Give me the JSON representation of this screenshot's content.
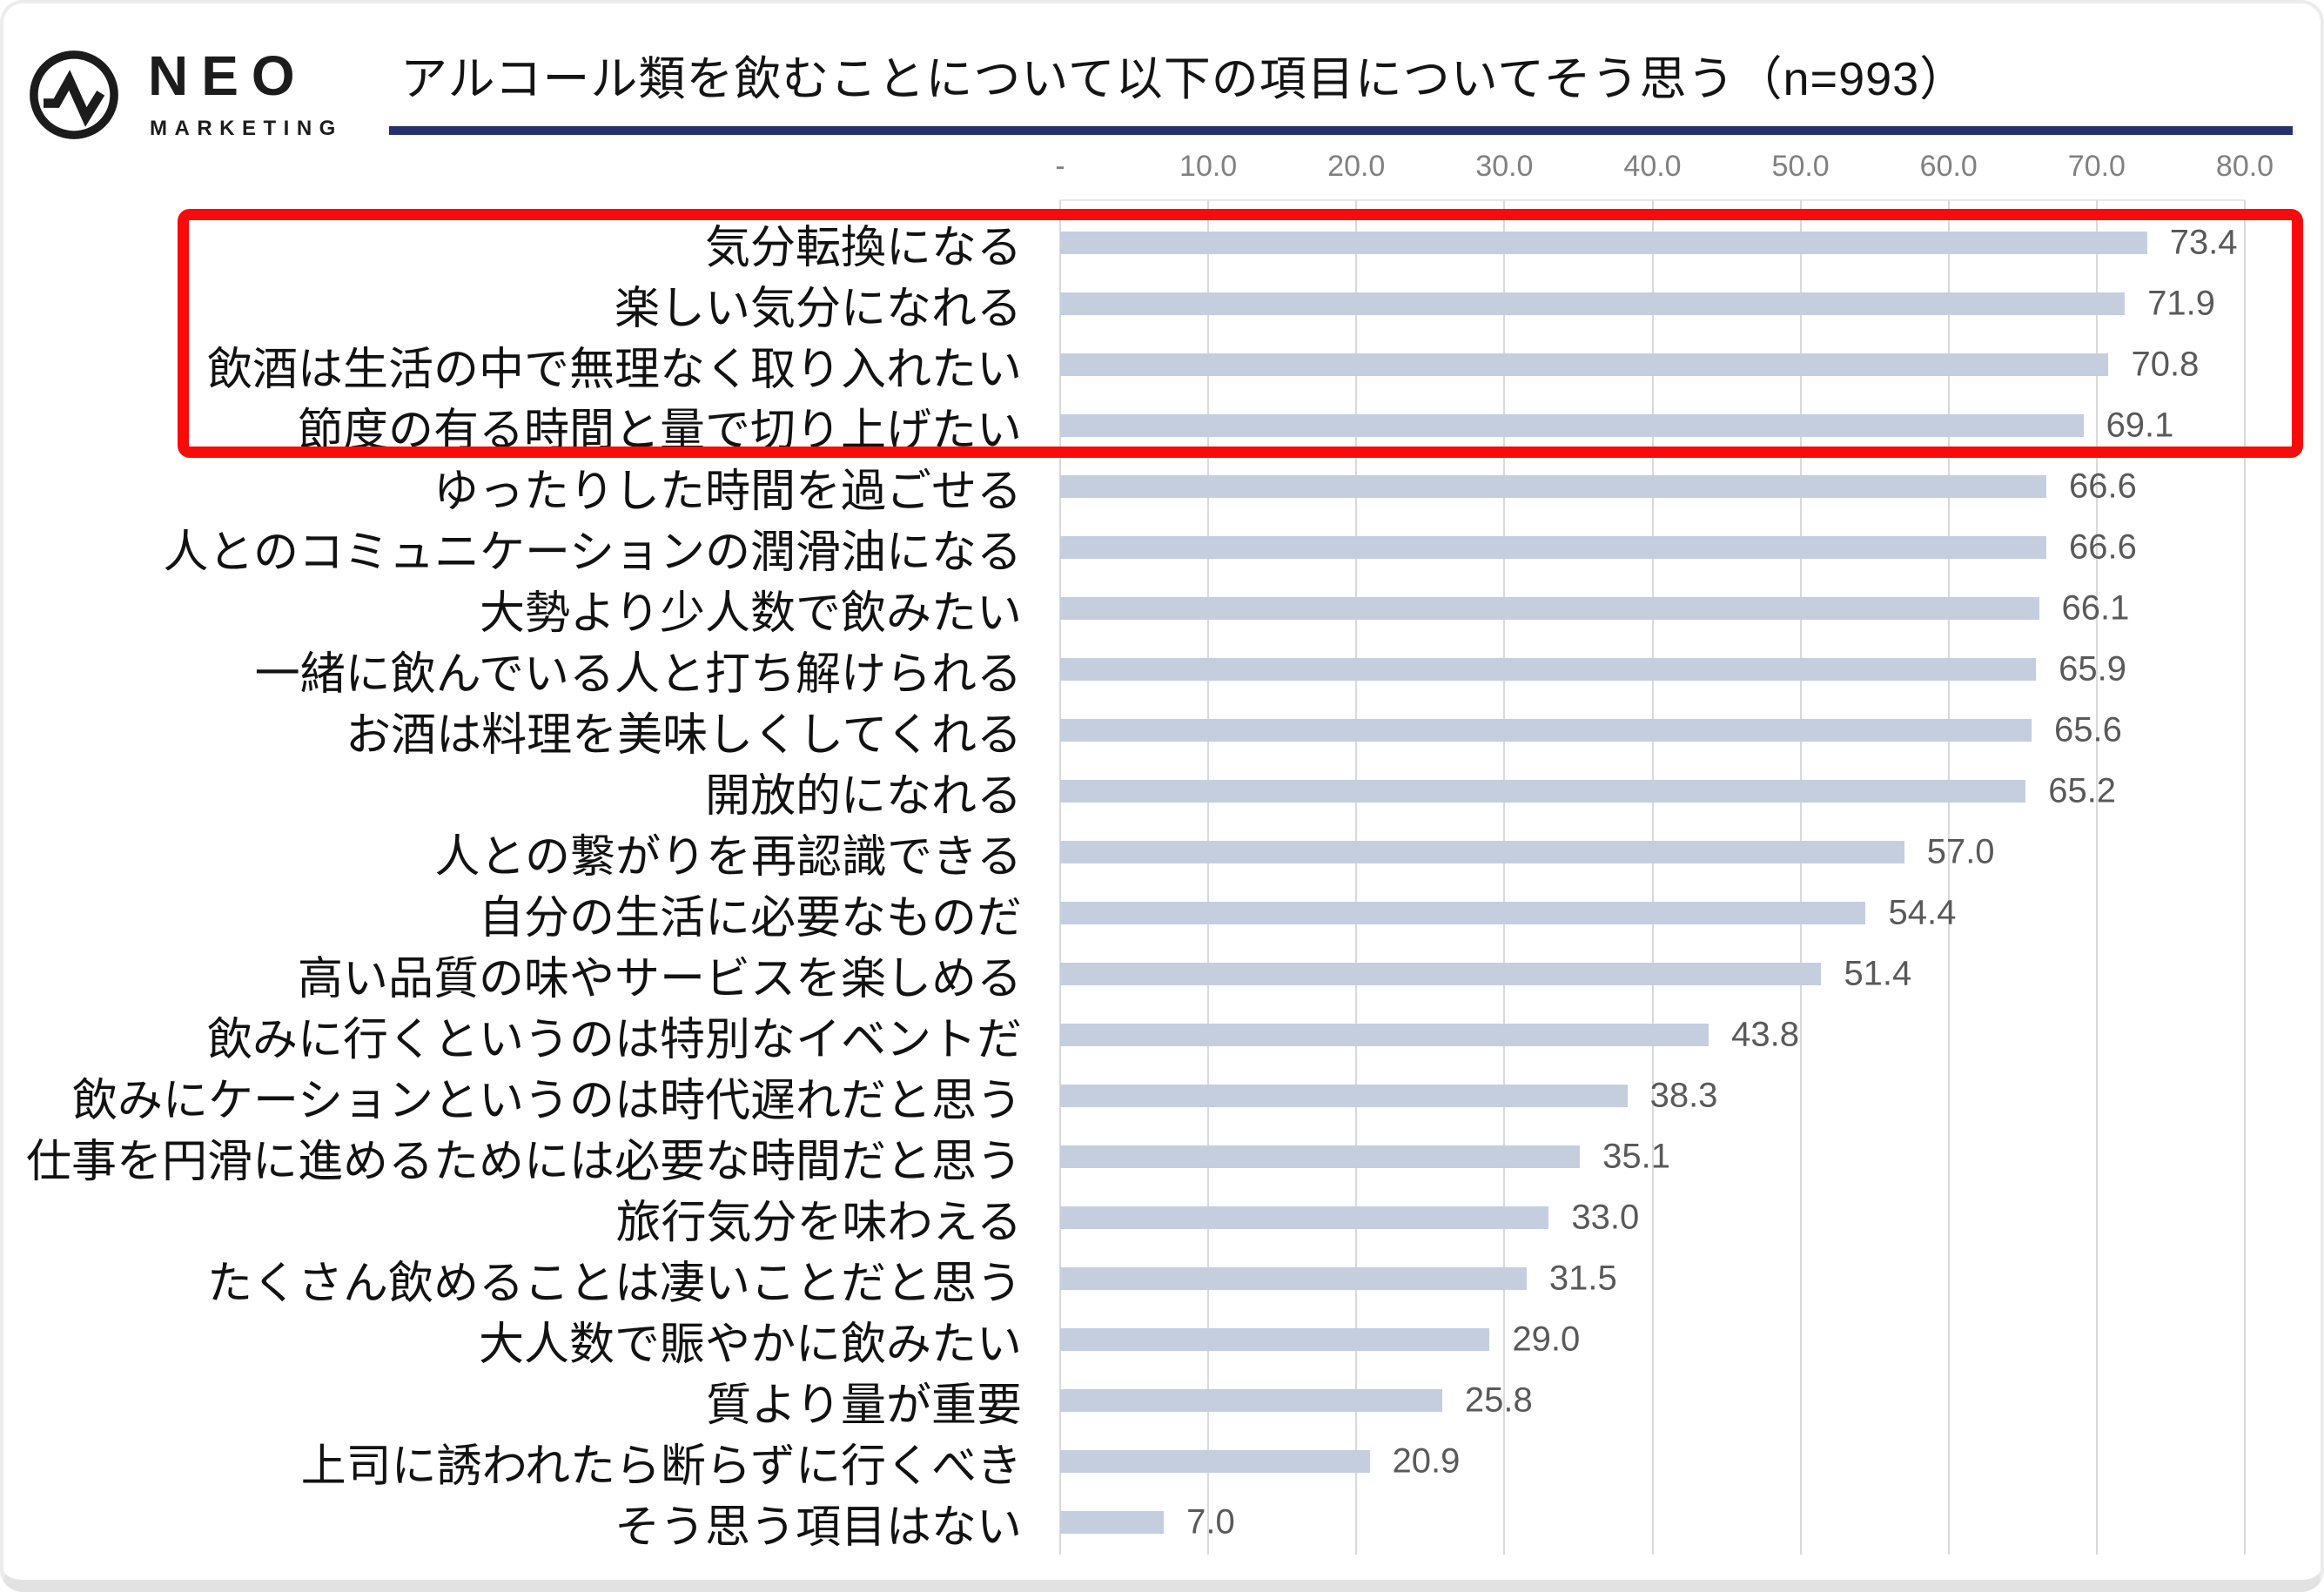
{
  "logo": {
    "icon": "pulse-zigzag-icon",
    "brand": "NEO",
    "sub_brand": "MARKETING"
  },
  "header": {
    "title": "アルコール類を飲むことについて以下の項目についてそう思う（n=993）"
  },
  "chart_data": {
    "type": "bar",
    "orientation": "horizontal",
    "title": "アルコール類を飲むことについて以下の項目についてそう思う（n=993）",
    "sample_size": "n=993",
    "categories": [
      "気分転換になる",
      "楽しい気分になれる",
      "飲酒は生活の中で無理なく取り入れたい",
      "節度の有る時間と量で切り上げたい",
      "ゆったりした時間を過ごせる",
      "人とのコミュニケーションの潤滑油になる",
      "大勢より少人数で飲みたい",
      "一緒に飲んでいる人と打ち解けられる",
      "お酒は料理を美味しくしてくれる",
      "開放的になれる",
      "人との繋がりを再認識できる",
      "自分の生活に必要なものだ",
      "高い品質の味やサービスを楽しめる",
      "飲みに行くというのは特別なイベントだ",
      "飲みにケーションというのは時代遅れだと思う",
      "仕事を円滑に進めるためには必要な時間だと思う",
      "旅行気分を味わえる",
      "たくさん飲めることは凄いことだと思う",
      "大人数で賑やかに飲みたい",
      "質より量が重要",
      "上司に誘われたら断らずに行くべき",
      "そう思う項目はない"
    ],
    "values": [
      73.4,
      71.9,
      70.8,
      69.1,
      66.6,
      66.6,
      66.1,
      65.9,
      65.6,
      65.2,
      57.0,
      54.4,
      51.4,
      43.8,
      38.3,
      35.1,
      33.0,
      31.5,
      29.0,
      25.8,
      20.9,
      7.0
    ],
    "x_axis": {
      "position": "top",
      "min": 0,
      "max": 80,
      "tick_step": 10,
      "tick_labels": [
        "-",
        "10.0",
        "20.0",
        "30.0",
        "40.0",
        "50.0",
        "60.0",
        "70.0",
        "80.0"
      ],
      "grid": true
    },
    "legend": "none",
    "highlight": {
      "first_rows": 4,
      "style": "red-outline-box"
    },
    "colors": {
      "bar": "#c4cedf",
      "grid": "#d9d9d9",
      "value_label": "#595959",
      "axis_label": "#808080",
      "category_label": "#121212",
      "title_underline": "#25316e",
      "highlight_border": "#f70b0b",
      "logo": "#1c1c1c"
    }
  }
}
